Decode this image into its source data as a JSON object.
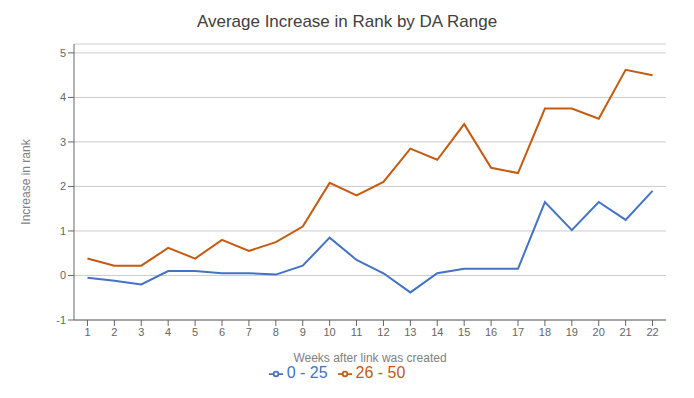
{
  "chart_data": {
    "type": "line",
    "title": "Average Increase in Rank by DA Range",
    "xlabel": "Weeks after link was created",
    "ylabel": "Increase in rank",
    "x": [
      1,
      2,
      3,
      4,
      5,
      6,
      7,
      8,
      9,
      10,
      11,
      12,
      13,
      14,
      15,
      16,
      17,
      18,
      19,
      20,
      21,
      22
    ],
    "series": [
      {
        "name": "0 - 25",
        "color": "#4472C4",
        "values": [
          -0.05,
          -0.12,
          -0.2,
          0.1,
          0.1,
          0.05,
          0.05,
          0.02,
          0.22,
          0.85,
          0.35,
          0.05,
          -0.38,
          0.05,
          0.15,
          0.15,
          0.15,
          1.65,
          1.02,
          1.65,
          1.25,
          1.9
        ]
      },
      {
        "name": "26 - 50",
        "color": "#C55A11",
        "values": [
          0.38,
          0.22,
          0.22,
          0.62,
          0.38,
          0.8,
          0.55,
          0.75,
          1.1,
          2.08,
          1.8,
          2.1,
          2.85,
          2.6,
          3.4,
          2.42,
          2.3,
          3.75,
          3.75,
          3.52,
          4.62,
          4.5
        ]
      }
    ],
    "xlim": [
      0.5,
      22.5
    ],
    "xticks": [
      1,
      2,
      3,
      4,
      5,
      6,
      7,
      8,
      9,
      10,
      11,
      12,
      13,
      14,
      15,
      16,
      17,
      18,
      19,
      20,
      21,
      22
    ],
    "ylim": [
      -1,
      5.2
    ],
    "yticks": [
      -1,
      0,
      1,
      2,
      3,
      4,
      5
    ],
    "grid": true,
    "legend": "bottom"
  }
}
